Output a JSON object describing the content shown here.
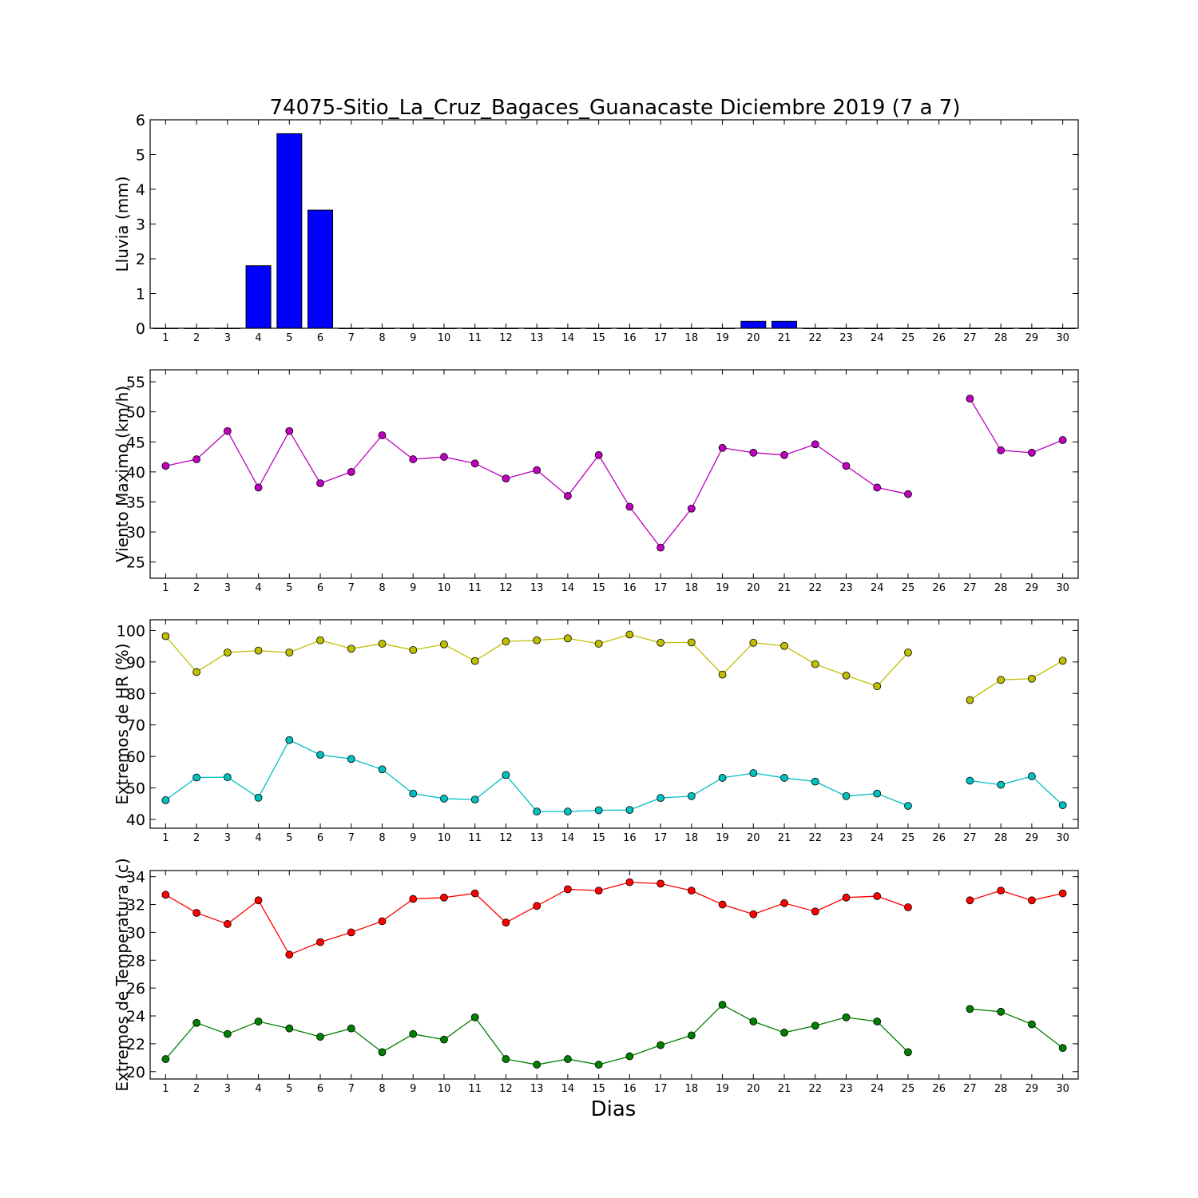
{
  "title": "74075-Sitio_La_Cruz_Bagaces_Guanacaste Diciembre 2019  (7 a 7)",
  "xlabel": "Dias",
  "colors": {
    "rain": "#0000ff",
    "wind": "#bf00bf",
    "hr_max": "#bfbf00",
    "hr_min": "#00bfbf",
    "temp_max": "#ff0000",
    "temp_min": "#008000"
  },
  "chart_data": [
    {
      "type": "bar",
      "ylabel": "Lluvia (mm)",
      "x": [
        1,
        2,
        3,
        4,
        5,
        6,
        7,
        8,
        9,
        10,
        11,
        12,
        13,
        14,
        15,
        16,
        17,
        18,
        19,
        20,
        21,
        22,
        23,
        24,
        25,
        26,
        27,
        28,
        29,
        30
      ],
      "ylim": [
        0,
        6
      ],
      "yticks": [
        0,
        1,
        2,
        3,
        4,
        5,
        6
      ],
      "series": [
        {
          "values": [
            0,
            0,
            0,
            1.8,
            5.6,
            3.4,
            0,
            0,
            0,
            0,
            0,
            0,
            0,
            0,
            0,
            0,
            0,
            0,
            0,
            0.2,
            0.2,
            0,
            0,
            0,
            0,
            0,
            0,
            0,
            0,
            0
          ]
        }
      ]
    },
    {
      "type": "line",
      "ylabel": "Viento Maximo (km/h)",
      "x": [
        1,
        2,
        3,
        4,
        5,
        6,
        7,
        8,
        9,
        10,
        11,
        12,
        13,
        14,
        15,
        16,
        17,
        18,
        19,
        20,
        21,
        22,
        23,
        24,
        25,
        26,
        27,
        28,
        29,
        30
      ],
      "ylim": [
        22.3,
        57
      ],
      "yticks": [
        25,
        30,
        35,
        40,
        45,
        50,
        55
      ],
      "series": [
        {
          "values": [
            41.0,
            42.1,
            46.8,
            37.4,
            46.8,
            38.1,
            40.0,
            46.1,
            42.1,
            42.5,
            41.4,
            38.9,
            40.3,
            36.0,
            42.8,
            34.2,
            27.4,
            33.9,
            44.0,
            43.2,
            42.8,
            44.6,
            41.0,
            37.4,
            36.3,
            null,
            52.2,
            43.6,
            43.2,
            45.3
          ]
        }
      ]
    },
    {
      "type": "line",
      "ylabel": "Extremos de HR (%)",
      "x": [
        1,
        2,
        3,
        4,
        5,
        6,
        7,
        8,
        9,
        10,
        11,
        12,
        13,
        14,
        15,
        16,
        17,
        18,
        19,
        20,
        21,
        22,
        23,
        24,
        25,
        26,
        27,
        28,
        29,
        30
      ],
      "ylim": [
        37.2,
        103.4
      ],
      "yticks": [
        40,
        50,
        60,
        70,
        80,
        90,
        100
      ],
      "series": [
        {
          "values": [
            98.2,
            86.8,
            93.0,
            93.6,
            93.0,
            96.9,
            94.2,
            95.8,
            93.8,
            95.6,
            90.3,
            96.5,
            96.9,
            97.5,
            95.8,
            98.7,
            96.1,
            96.2,
            86.0,
            96.1,
            95.1,
            89.3,
            85.7,
            82.3,
            93.0,
            null,
            77.9,
            84.3,
            84.7,
            90.4
          ]
        },
        {
          "values": [
            46.1,
            53.3,
            53.4,
            46.9,
            65.2,
            60.5,
            59.2,
            55.9,
            48.2,
            46.6,
            46.3,
            54.1,
            42.5,
            42.5,
            42.9,
            43.0,
            46.8,
            47.4,
            53.2,
            54.7,
            53.2,
            52.0,
            47.4,
            48.2,
            44.3,
            null,
            52.3,
            51.0,
            53.7,
            44.5
          ]
        }
      ]
    },
    {
      "type": "line",
      "ylabel": "Extremos de Temperatura (c)",
      "x": [
        1,
        2,
        3,
        4,
        5,
        6,
        7,
        8,
        9,
        10,
        11,
        12,
        13,
        14,
        15,
        16,
        17,
        18,
        19,
        20,
        21,
        22,
        23,
        24,
        25,
        26,
        27,
        28,
        29,
        30
      ],
      "ylim": [
        19.47,
        34.44
      ],
      "yticks": [
        20,
        22,
        24,
        26,
        28,
        30,
        32,
        34
      ],
      "series": [
        {
          "values": [
            32.7,
            31.4,
            30.6,
            32.3,
            28.4,
            29.3,
            30.0,
            30.8,
            32.4,
            32.5,
            32.8,
            30.7,
            31.9,
            33.1,
            33.0,
            33.6,
            33.5,
            33.0,
            32.0,
            31.3,
            32.1,
            31.5,
            32.5,
            32.6,
            31.8,
            null,
            32.3,
            33.0,
            32.3,
            32.8
          ]
        },
        {
          "values": [
            20.9,
            23.5,
            22.7,
            23.6,
            23.1,
            22.5,
            23.1,
            21.4,
            22.7,
            22.3,
            23.9,
            20.9,
            20.5,
            20.9,
            20.5,
            21.1,
            21.9,
            22.6,
            24.8,
            23.6,
            22.8,
            23.3,
            23.9,
            23.6,
            21.4,
            null,
            24.5,
            24.3,
            23.4,
            21.7
          ]
        }
      ]
    }
  ]
}
